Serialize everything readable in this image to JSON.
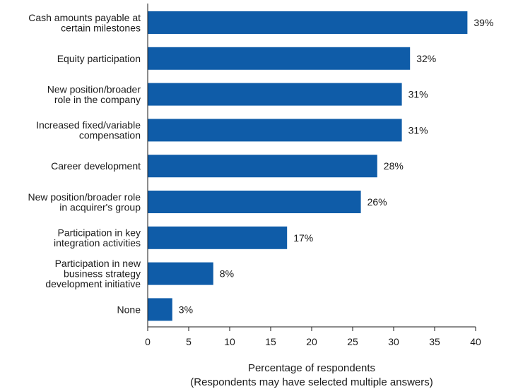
{
  "chart_data": {
    "type": "bar",
    "orientation": "horizontal",
    "categories": [
      [
        "Cash amounts payable at",
        "certain milestones"
      ],
      [
        "Equity participation"
      ],
      [
        "New position/broader",
        "role in the company"
      ],
      [
        "Increased fixed/variable",
        "compensation"
      ],
      [
        "Career development"
      ],
      [
        "New position/broader role",
        "in acquirer's group"
      ],
      [
        "Participation in key",
        "integration activities"
      ],
      [
        "Participation in new",
        "business strategy",
        "development initiative"
      ],
      [
        "None"
      ]
    ],
    "values": [
      39,
      32,
      31,
      31,
      28,
      26,
      17,
      8,
      3
    ],
    "value_labels": [
      "39%",
      "32%",
      "31%",
      "31%",
      "28%",
      "26%",
      "17%",
      "8%",
      "3%"
    ],
    "xlim": [
      0,
      40
    ],
    "xticks": [
      "0",
      "5",
      "10",
      "15",
      "20",
      "25",
      "30",
      "35",
      "40"
    ],
    "xlabel": "Percentage of respondents",
    "xlabel_sub": "(Respondents may have selected multiple answers)",
    "bar_color": "#0f5ca8",
    "grid": false
  }
}
